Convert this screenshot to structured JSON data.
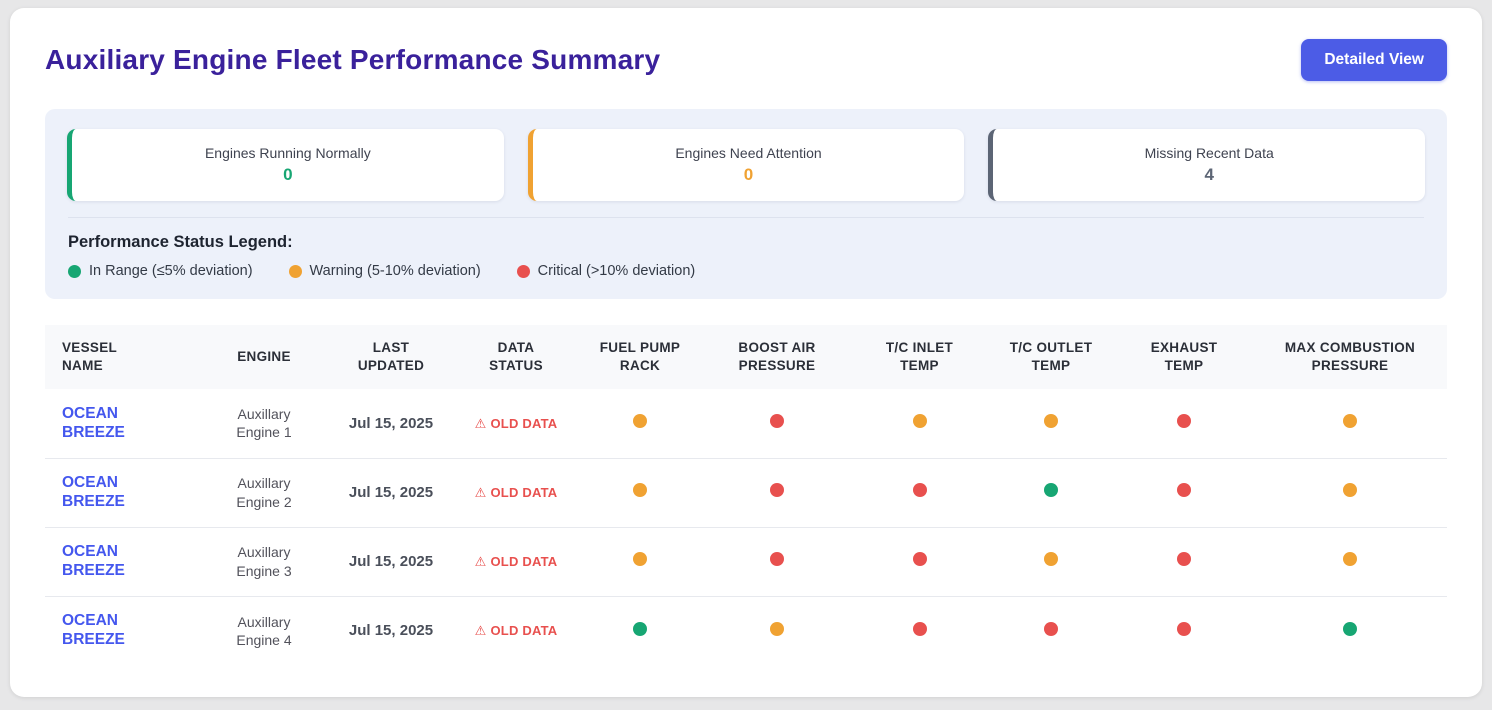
{
  "header": {
    "title": "Auxiliary Engine Fleet Performance Summary",
    "detailed_view_button": "Detailed View"
  },
  "summary": {
    "cards": [
      {
        "label": "Engines Running Normally",
        "value": "0",
        "accent_color": "#17a673"
      },
      {
        "label": "Engines Need Attention",
        "value": "0",
        "accent_color": "#f0a232"
      },
      {
        "label": "Missing Recent Data",
        "value": "4",
        "accent_color": "#5c6575"
      }
    ]
  },
  "legend": {
    "title": "Performance Status Legend:",
    "items": [
      {
        "status": "in_range",
        "label": "In Range (≤5% deviation)",
        "color": "#17a673"
      },
      {
        "status": "warning",
        "label": "Warning (5-10% deviation)",
        "color": "#f0a232"
      },
      {
        "status": "critical",
        "label": "Critical (>10% deviation)",
        "color": "#e8504e"
      }
    ]
  },
  "table": {
    "columns": [
      "VESSEL NAME",
      "ENGINE",
      "LAST UPDATED",
      "DATA STATUS",
      "FUEL PUMP RACK",
      "BOOST AIR PRESSURE",
      "T/C INLET TEMP",
      "T/C OUTLET TEMP",
      "EXHAUST TEMP",
      "MAX COMBUSTION PRESSURE"
    ],
    "status_colors": {
      "in_range": "#17a673",
      "warning": "#f0a232",
      "critical": "#e8504e"
    },
    "warning_icon": "⚠",
    "rows": [
      {
        "vessel": "OCEAN BREEZE",
        "engine": "Auxillary Engine 1",
        "last_updated": "Jul 15, 2025",
        "data_status": "OLD DATA",
        "metrics": [
          "warning",
          "critical",
          "warning",
          "warning",
          "critical",
          "warning"
        ]
      },
      {
        "vessel": "OCEAN BREEZE",
        "engine": "Auxillary Engine 2",
        "last_updated": "Jul 15, 2025",
        "data_status": "OLD DATA",
        "metrics": [
          "warning",
          "critical",
          "critical",
          "in_range",
          "critical",
          "warning"
        ]
      },
      {
        "vessel": "OCEAN BREEZE",
        "engine": "Auxillary Engine 3",
        "last_updated": "Jul 15, 2025",
        "data_status": "OLD DATA",
        "metrics": [
          "warning",
          "critical",
          "critical",
          "warning",
          "critical",
          "warning"
        ]
      },
      {
        "vessel": "OCEAN BREEZE",
        "engine": "Auxillary Engine 4",
        "last_updated": "Jul 15, 2025",
        "data_status": "OLD DATA",
        "metrics": [
          "in_range",
          "warning",
          "critical",
          "critical",
          "critical",
          "in_range"
        ]
      }
    ]
  }
}
